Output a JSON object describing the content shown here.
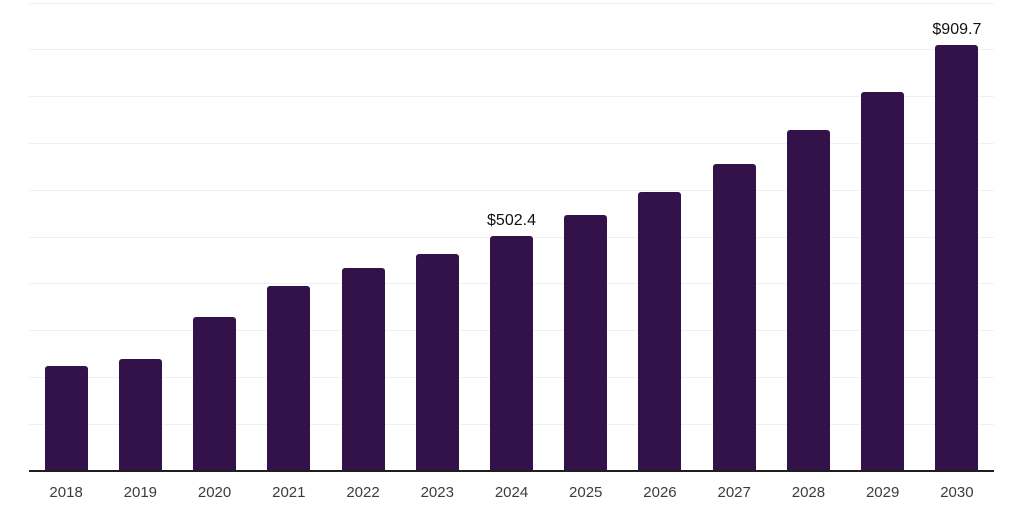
{
  "chart_data": {
    "type": "bar",
    "title": "",
    "xlabel": "",
    "ylabel": "",
    "categories": [
      "2018",
      "2019",
      "2020",
      "2021",
      "2022",
      "2023",
      "2024",
      "2025",
      "2026",
      "2027",
      "2028",
      "2029",
      "2030"
    ],
    "values": [
      225.0,
      238.7,
      328.7,
      395.9,
      433.4,
      463.9,
      502.4,
      546.1,
      597.1,
      656.0,
      728.2,
      809.6,
      909.7
    ],
    "value_labels": [
      "",
      "",
      "",
      "",
      "",
      "",
      "$502.4",
      "",
      "",
      "",
      "",
      "",
      "$909.7"
    ],
    "ylim": [
      0,
      1000
    ],
    "grid_step": 100,
    "grid": "horizontal-only",
    "legend_position": "none",
    "y_tick_labels_visible": false,
    "colors": {
      "bar": "#331149",
      "gridline": "#f0f0f0",
      "axis_line": "#1f1f1f",
      "x_tick_text": "#3c3c3c",
      "value_label_text": "#111111",
      "background": "#ffffff"
    }
  }
}
